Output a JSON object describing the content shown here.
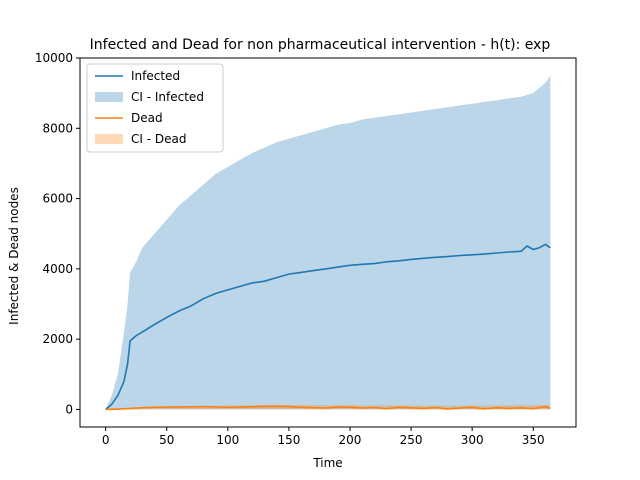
{
  "chart_data": {
    "type": "line",
    "title": "Infected and Dead for non pharmaceutical intervention - h(t): exp",
    "xlabel": "Time",
    "ylabel": "Infected & Dead nodes",
    "xlim": [
      -21,
      385
    ],
    "ylim": [
      -500,
      10000
    ],
    "xticks": [
      0,
      50,
      100,
      150,
      200,
      250,
      300,
      350
    ],
    "yticks": [
      0,
      2000,
      4000,
      6000,
      8000,
      10000
    ],
    "grid": false,
    "legend_position": "top-left",
    "legend": [
      "Infected",
      "CI - Infected",
      "Dead",
      "CI - Dead"
    ],
    "series": [
      {
        "name": "Infected",
        "kind": "line",
        "color": "#1f77b4",
        "x": [
          0,
          5,
          10,
          15,
          18,
          20,
          25,
          30,
          40,
          50,
          60,
          70,
          80,
          90,
          100,
          110,
          120,
          130,
          140,
          150,
          160,
          170,
          180,
          190,
          200,
          210,
          220,
          230,
          240,
          250,
          260,
          270,
          280,
          290,
          300,
          310,
          320,
          330,
          340,
          345,
          350,
          355,
          360,
          364
        ],
        "y": [
          0,
          150,
          400,
          800,
          1300,
          1950,
          2100,
          2200,
          2420,
          2620,
          2800,
          2950,
          3150,
          3300,
          3400,
          3500,
          3600,
          3650,
          3750,
          3850,
          3900,
          3950,
          4000,
          4050,
          4100,
          4130,
          4150,
          4200,
          4230,
          4270,
          4300,
          4330,
          4350,
          4380,
          4400,
          4420,
          4450,
          4480,
          4500,
          4650,
          4550,
          4600,
          4700,
          4600
        ]
      },
      {
        "name": "CI - Infected",
        "kind": "band",
        "color": "#1f77b4",
        "x": [
          0,
          5,
          10,
          15,
          18,
          20,
          25,
          30,
          40,
          50,
          60,
          70,
          80,
          90,
          100,
          110,
          120,
          130,
          140,
          150,
          160,
          170,
          180,
          190,
          200,
          210,
          220,
          230,
          240,
          250,
          260,
          270,
          280,
          290,
          300,
          310,
          320,
          330,
          340,
          350,
          360,
          364
        ],
        "upper": [
          0,
          400,
          1000,
          2200,
          3000,
          3900,
          4200,
          4600,
          5000,
          5400,
          5800,
          6100,
          6400,
          6700,
          6900,
          7100,
          7300,
          7450,
          7600,
          7700,
          7800,
          7900,
          8000,
          8100,
          8150,
          8250,
          8300,
          8350,
          8400,
          8450,
          8500,
          8550,
          8600,
          8650,
          8700,
          8750,
          8800,
          8850,
          8900,
          9000,
          9300,
          9500
        ],
        "lower": [
          0,
          0,
          0,
          0,
          0,
          0,
          0,
          0,
          0,
          0,
          0,
          0,
          0,
          0,
          0,
          0,
          0,
          0,
          0,
          0,
          0,
          0,
          0,
          0,
          0,
          0,
          0,
          0,
          0,
          0,
          0,
          0,
          0,
          0,
          0,
          0,
          0,
          0,
          0,
          0,
          0,
          0
        ]
      },
      {
        "name": "Dead",
        "kind": "line",
        "color": "#ff7f0e",
        "x": [
          0,
          10,
          20,
          30,
          40,
          50,
          60,
          70,
          80,
          90,
          100,
          110,
          120,
          130,
          140,
          150,
          160,
          170,
          180,
          190,
          200,
          210,
          220,
          230,
          240,
          250,
          260,
          270,
          280,
          290,
          300,
          310,
          320,
          330,
          340,
          350,
          360,
          364
        ],
        "y": [
          0,
          10,
          30,
          50,
          60,
          65,
          70,
          75,
          80,
          70,
          60,
          70,
          75,
          90,
          85,
          80,
          60,
          50,
          40,
          70,
          60,
          40,
          55,
          20,
          60,
          45,
          30,
          55,
          10,
          40,
          60,
          15,
          50,
          30,
          45,
          20,
          80,
          30
        ]
      },
      {
        "name": "CI - Dead",
        "kind": "band",
        "color": "#ff7f0e",
        "x": [
          0,
          50,
          100,
          150,
          200,
          250,
          300,
          364
        ],
        "upper": [
          0,
          80,
          110,
          130,
          120,
          110,
          110,
          130
        ],
        "lower": [
          0,
          0,
          0,
          0,
          0,
          0,
          0,
          0
        ]
      }
    ]
  }
}
